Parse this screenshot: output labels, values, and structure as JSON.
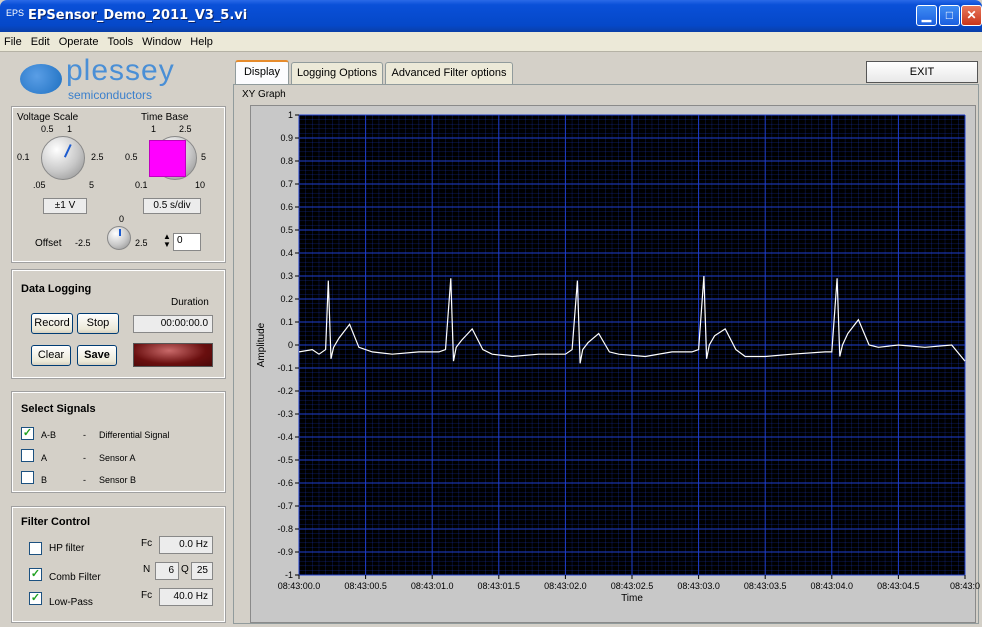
{
  "window": {
    "title": "EPSensor_Demo_2011_V3_5.vi",
    "app_icon": "EPS"
  },
  "menu": [
    "File",
    "Edit",
    "Operate",
    "Tools",
    "Window",
    "Help"
  ],
  "logo": {
    "brand": "plessey",
    "sub": "semiconductors"
  },
  "voltage_scale": {
    "label": "Voltage Scale",
    "ticks": [
      "0.5",
      "1",
      "0.1",
      "2.5",
      ".05",
      "5"
    ],
    "value": "±1 V"
  },
  "time_base": {
    "label": "Time Base",
    "ticks": [
      "1",
      "2.5",
      "0.5",
      "5",
      "0.1",
      "10"
    ],
    "value": "0.5 s/div"
  },
  "offset": {
    "label": "Offset",
    "min": "-2.5",
    "max": "2.5",
    "mid": "0",
    "value": "0"
  },
  "data_logging": {
    "title": "Data Logging",
    "duration_label": "Duration",
    "duration": "00:00:00.0",
    "record": "Record",
    "stop": "Stop",
    "clear": "Clear",
    "save": "Save"
  },
  "signals": {
    "title": "Select Signals",
    "items": [
      {
        "code": "A-B",
        "dash": "-",
        "desc": "Differential Signal",
        "checked": true
      },
      {
        "code": "A",
        "dash": "-",
        "desc": "Sensor A",
        "checked": false
      },
      {
        "code": "B",
        "dash": "-",
        "desc": "Sensor B",
        "checked": false
      }
    ]
  },
  "filter": {
    "title": "Filter Control",
    "hp": {
      "label": "HP filter",
      "checked": false,
      "fc_label": "Fc",
      "fc": "0.0 Hz"
    },
    "comb": {
      "label": "Comb Filter",
      "checked": true,
      "n_label": "N",
      "n": "6",
      "q_label": "Q",
      "q": "25"
    },
    "lp": {
      "label": "Low-Pass",
      "checked": true,
      "fc_label": "Fc",
      "fc": "40.0 Hz"
    }
  },
  "tabs": [
    "Display",
    "Logging Options",
    "Advanced Filter options"
  ],
  "exit_label": "EXIT",
  "graph_label": "XY Graph",
  "chart_data": {
    "type": "line",
    "xlabel": "Time",
    "ylabel": "Amplitude",
    "ylim": [
      -1,
      1
    ],
    "xlim_seconds": [
      0,
      5
    ],
    "y_ticks": [
      "1",
      "0.9",
      "0.8",
      "0.7",
      "0.6",
      "0.5",
      "0.4",
      "0.3",
      "0.2",
      "0.1",
      "0",
      "-0.1",
      "-0.2",
      "-0.3",
      "-0.4",
      "-0.5",
      "-0.6",
      "-0.7",
      "-0.8",
      "-0.9",
      "-1"
    ],
    "x_ticks": [
      "08:43:00.0",
      "08:43:00.5",
      "08:43:01.0",
      "08:43:01.5",
      "08:43:02.0",
      "08:43:02.5",
      "08:43:03.0",
      "08:43:03.5",
      "08:43:04.0",
      "08:43:04.5",
      "08:43:0"
    ],
    "grid": true,
    "background": "#000000",
    "grid_color": "#1f3fcf",
    "line_color": "#ffffff",
    "series": [
      {
        "x": [
          0,
          0.1,
          0.15,
          0.2,
          0.22,
          0.24,
          0.26,
          0.3,
          0.38,
          0.45,
          0.55,
          0.7,
          0.9,
          1.05,
          1.1,
          1.14,
          1.16,
          1.18,
          1.22,
          1.3,
          1.38,
          1.45,
          1.6,
          1.8,
          2.0,
          2.05,
          2.09,
          2.11,
          2.13,
          2.17,
          2.25,
          2.33,
          2.4,
          2.6,
          2.8,
          2.95,
          3.0,
          3.04,
          3.06,
          3.08,
          3.12,
          3.2,
          3.28,
          3.35,
          3.5,
          3.7,
          3.95,
          4.0,
          4.04,
          4.06,
          4.08,
          4.12,
          4.2,
          4.28,
          4.35,
          4.5,
          4.7,
          4.9,
          5.0
        ],
        "y": [
          -0.03,
          -0.02,
          -0.04,
          -0.02,
          0.28,
          -0.06,
          -0.01,
          0.03,
          0.09,
          -0.01,
          -0.03,
          -0.04,
          -0.03,
          -0.03,
          -0.02,
          0.29,
          -0.07,
          -0.01,
          0.02,
          0.07,
          -0.02,
          -0.04,
          -0.05,
          -0.04,
          -0.04,
          -0.02,
          0.28,
          -0.08,
          -0.02,
          0.01,
          0.05,
          -0.03,
          -0.04,
          -0.05,
          -0.03,
          -0.03,
          -0.02,
          0.3,
          -0.06,
          0.0,
          0.04,
          0.07,
          -0.02,
          -0.05,
          -0.05,
          -0.04,
          -0.03,
          -0.03,
          0.29,
          -0.05,
          0.0,
          0.05,
          0.11,
          0.0,
          -0.01,
          0.0,
          -0.01,
          0.0,
          -0.07
        ]
      }
    ]
  }
}
